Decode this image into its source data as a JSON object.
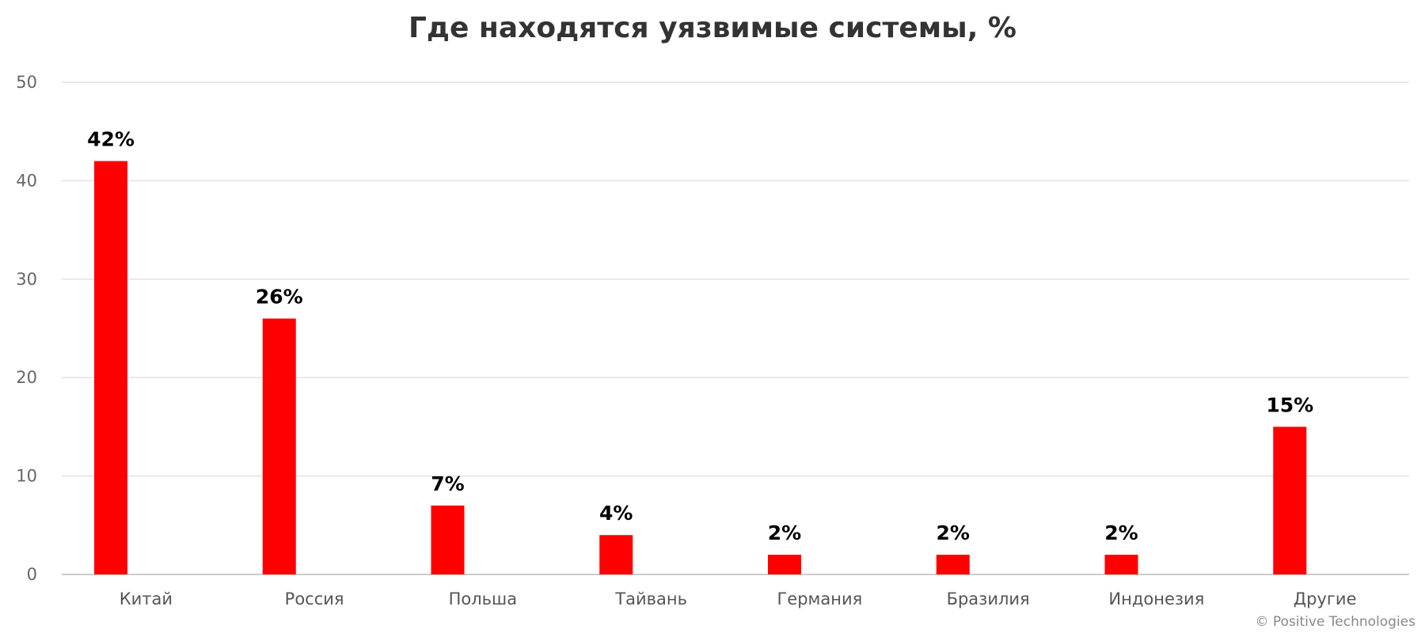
{
  "chart_data": {
    "type": "bar",
    "title": "Где находятся уязвимые системы, %",
    "xlabel": "",
    "ylabel": "",
    "categories": [
      "Китай",
      "Россия",
      "Польша",
      "Тайвань",
      "Германия",
      "Бразилия",
      "Индонезия",
      "Другие"
    ],
    "values": [
      42,
      26,
      7,
      4,
      2,
      2,
      2,
      15
    ],
    "data_labels": [
      "42%",
      "26%",
      "7%",
      "4%",
      "2%",
      "2%",
      "2%",
      "15%"
    ],
    "ylim": [
      0,
      50
    ],
    "yticks": [
      0,
      10,
      20,
      30,
      40,
      50
    ],
    "grid": true,
    "legend": "none",
    "bar_color": "#ff0000"
  },
  "credit": "© Positive Technologies"
}
